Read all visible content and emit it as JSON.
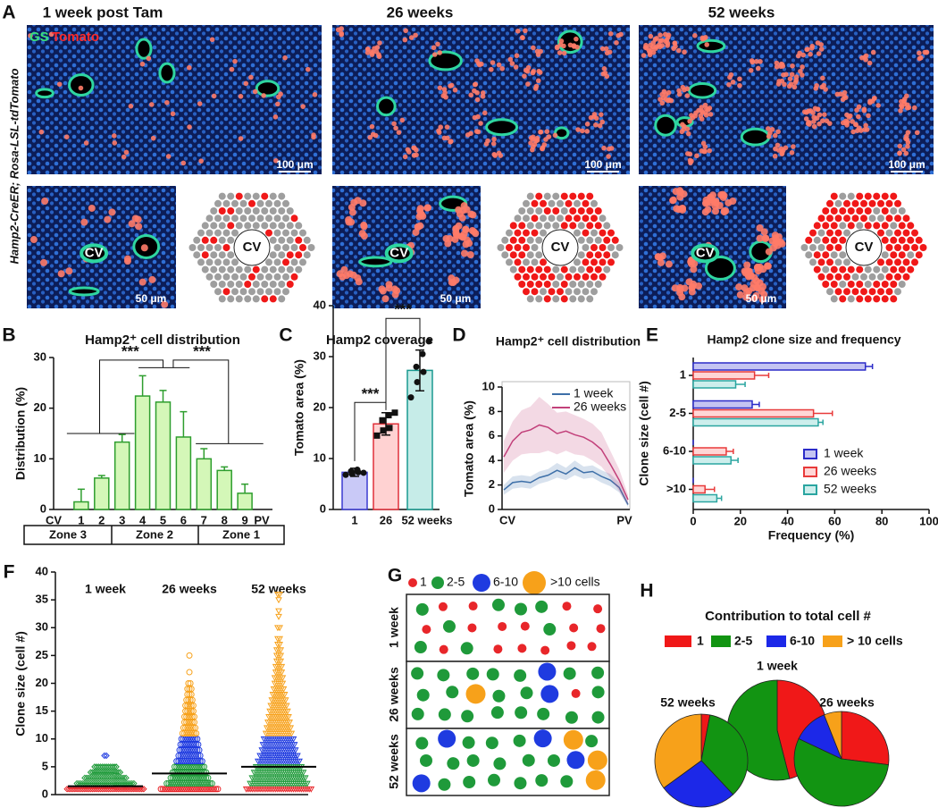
{
  "figure": {
    "labels": [
      "A",
      "B",
      "C",
      "D",
      "E",
      "F",
      "G",
      "H"
    ],
    "panel_a": {
      "columns": [
        "1 week post Tam",
        "26 weeks",
        "52 weeks"
      ],
      "stain_gs": "GS",
      "stain_tomato": "Tomato",
      "genotype": "Hamp2-CreER; Rosa-LSL-tdTomato",
      "scale_top": [
        "100 μm",
        "100 μm",
        "100 μm"
      ],
      "scale_bottom": [
        "50 μm",
        "50 μm",
        "50 μm"
      ],
      "cv": [
        "CV",
        "CV",
        "CV",
        "CV",
        "CV",
        "CV"
      ]
    },
    "panel_g": {
      "legend": [
        {
          "label": "1",
          "color": "#e8262a"
        },
        {
          "label": "2-5",
          "color": "#1f9a3a"
        },
        {
          "label": "6-10",
          "color": "#1f3be0"
        },
        {
          "label": ">10 cells",
          "color": "#f7a11a"
        }
      ],
      "rows": [
        "1 week",
        "26 weeks",
        "52 weeks"
      ]
    }
  },
  "chart_data": [
    {
      "type": "bar",
      "title": "Hamp2⁺ cell distribution",
      "y_label": "Distribution (%)",
      "categories": [
        "1",
        "2",
        "3",
        "4",
        "5",
        "6",
        "7",
        "8",
        "9"
      ],
      "axis_ends": [
        "CV",
        "PV"
      ],
      "values": [
        1.5,
        6.2,
        13.3,
        22.4,
        21.2,
        14.3,
        10,
        7.7,
        3.2
      ],
      "errors": [
        2.5,
        0.5,
        1.5,
        4,
        2.3,
        5,
        2,
        0.7,
        1.8
      ],
      "color": "#d4f7b8",
      "edge_color": "#2e9e2e",
      "ylim": [
        0,
        30
      ],
      "yticks": [
        0,
        10,
        20,
        30
      ],
      "zones": [
        "Zone 3",
        "Zone 2",
        "Zone 1"
      ],
      "significance": [
        "***",
        "***"
      ]
    },
    {
      "type": "bar",
      "title": "Hamp2 coverage",
      "y_label": "Tomato area (%)",
      "categories": [
        "1",
        "26",
        "52 weeks"
      ],
      "values": [
        7.3,
        16.8,
        27.3
      ],
      "errors": [
        0.8,
        2.2,
        4
      ],
      "points": [
        [
          6.8,
          7,
          7.3,
          7.5,
          7.8,
          7.2
        ],
        [
          14.5,
          15.5,
          16,
          17.5,
          18.5,
          19
        ],
        [
          22,
          25,
          27,
          28,
          30.5,
          33
        ]
      ],
      "colors": [
        "#c9c9f7",
        "#ffd2d2",
        "#c6ece8"
      ],
      "edge_colors": [
        "#3a3ad0",
        "#e0303a",
        "#1a9a90"
      ],
      "ylim": [
        0,
        40
      ],
      "yticks": [
        0,
        10,
        20,
        30,
        40
      ],
      "significance": [
        "***",
        "***"
      ]
    },
    {
      "type": "line",
      "title": "Hamp2⁺ cell distribution",
      "y_label": "Tomato area (%)",
      "categories": [
        "CV",
        null,
        null,
        null,
        null,
        null,
        null,
        null,
        null,
        null,
        null,
        null,
        null,
        null,
        "PV"
      ],
      "series": [
        {
          "name": "1 week",
          "color": "#3d6fa8",
          "values": [
            1.6,
            2.2,
            2.3,
            2.2,
            2.6,
            2.8,
            3.2,
            2.9,
            3.4,
            3.0,
            3.1,
            2.7,
            2.4,
            1.8,
            0.4
          ],
          "errors": [
            0.4,
            0.5,
            0.5,
            0.5,
            0.5,
            0.5,
            0.6,
            0.5,
            0.6,
            0.5,
            0.5,
            0.5,
            0.5,
            0.4,
            0.2
          ]
        },
        {
          "name": "26 weeks",
          "color": "#c2407a",
          "values": [
            4.3,
            5.6,
            6.3,
            6.5,
            6.9,
            6.7,
            6.2,
            6.4,
            6.1,
            5.9,
            5.5,
            4.9,
            3.7,
            2.4,
            0.8
          ],
          "errors": [
            1.3,
            1.6,
            1.8,
            1.9,
            2.3,
            1.9,
            1.7,
            1.6,
            1.6,
            1.5,
            1.5,
            1.4,
            1.1,
            0.9,
            0.4
          ]
        }
      ],
      "ylim": [
        0,
        10
      ],
      "yticks": [
        0,
        2,
        4,
        6,
        8,
        10
      ]
    },
    {
      "type": "hbar",
      "title": "Hamp2 clone size and frequency",
      "x_label": "Frequency (%)",
      "y_label": "Clone size (cell #)",
      "categories": [
        "1",
        "2-5",
        "6-10",
        ">10"
      ],
      "series": [
        {
          "name": "1 week",
          "color": "#2b2bc8",
          "fill": "#c4c4f2",
          "values": [
            73,
            25,
            0,
            0
          ],
          "errors": [
            3,
            3,
            0,
            0
          ]
        },
        {
          "name": "26 weeks",
          "color": "#e83a3a",
          "fill": "#ffd6d6",
          "values": [
            26,
            51,
            14,
            5
          ],
          "errors": [
            6,
            8,
            3,
            4
          ]
        },
        {
          "name": "52 weeks",
          "color": "#2aa5a0",
          "fill": "#cdeeec",
          "values": [
            18,
            53,
            16,
            10
          ],
          "errors": [
            4,
            2,
            3,
            2
          ]
        }
      ],
      "xlim": [
        0,
        100
      ],
      "xticks": [
        0,
        20,
        40,
        60,
        80,
        100
      ]
    },
    {
      "type": "dot",
      "y_label": "Clone size (cell #)",
      "ylim": [
        0,
        40
      ],
      "yticks": [
        0,
        5,
        10,
        15,
        20,
        25,
        30,
        35,
        40
      ],
      "groups": [
        {
          "name": "1 week",
          "symbol": "diamond",
          "median": 1.5,
          "bins": [
            {
              "color": "#e8262a",
              "sizes": [
                1
              ],
              "counts": [
                40
              ]
            },
            {
              "color": "#1f9a3a",
              "sizes": [
                2,
                3,
                4,
                5
              ],
              "counts": [
                30,
                22,
                16,
                12
              ]
            },
            {
              "color": "#1f3be0",
              "sizes": [
                7
              ],
              "counts": [
                2
              ]
            }
          ]
        },
        {
          "name": "26 weeks",
          "symbol": "circle",
          "median": 3.8,
          "bins": [
            {
              "color": "#e8262a",
              "sizes": [
                1
              ],
              "counts": [
                30
              ]
            },
            {
              "color": "#1f9a3a",
              "sizes": [
                2,
                3,
                4,
                5
              ],
              "counts": [
                24,
                20,
                18,
                16
              ]
            },
            {
              "color": "#1f3be0",
              "sizes": [
                6,
                7,
                8,
                9,
                10
              ],
              "counts": [
                14,
                12,
                11,
                10,
                9
              ]
            },
            {
              "color": "#f7a11a",
              "sizes": [
                11,
                12,
                13,
                14,
                15,
                16,
                17,
                18,
                19,
                20,
                22,
                25
              ],
              "counts": [
                8,
                7,
                6,
                6,
                5,
                5,
                4,
                3,
                3,
                2,
                1,
                1
              ]
            }
          ]
        },
        {
          "name": "52 weeks",
          "symbol": "triangle",
          "median": 5,
          "bins": [
            {
              "color": "#e8262a",
              "sizes": [
                1
              ],
              "counts": [
                34
              ]
            },
            {
              "color": "#1f9a3a",
              "sizes": [
                2,
                3,
                4,
                5
              ],
              "counts": [
                30,
                28,
                26,
                24
              ]
            },
            {
              "color": "#1f3be0",
              "sizes": [
                6,
                7,
                8,
                9,
                10
              ],
              "counts": [
                22,
                20,
                18,
                17,
                16
              ]
            },
            {
              "color": "#f7a11a",
              "sizes": [
                11,
                12,
                13,
                14,
                15,
                16,
                17,
                18,
                19,
                20,
                21,
                22,
                23,
                24,
                25,
                26,
                27,
                28,
                30,
                32,
                33,
                35,
                36
              ],
              "counts": [
                14,
                13,
                12,
                11,
                10,
                9,
                8,
                7,
                6,
                5,
                5,
                4,
                4,
                3,
                3,
                3,
                2,
                2,
                2,
                1,
                1,
                1,
                2
              ]
            }
          ]
        }
      ]
    },
    {
      "type": "pie",
      "title": "Contribution to total cell #",
      "labels": [
        "1",
        "2-5",
        "6-10",
        "> 10 cells"
      ],
      "colors": [
        "#f01818",
        "#129412",
        "#1c28e8",
        "#f7a11a"
      ],
      "pies": [
        {
          "name": "1 week",
          "values": [
            46,
            54,
            0,
            0
          ]
        },
        {
          "name": "52 weeks",
          "values": [
            3,
            35,
            27,
            35
          ]
        },
        {
          "name": "26 weeks",
          "values": [
            27,
            55,
            12,
            6
          ]
        }
      ]
    }
  ]
}
